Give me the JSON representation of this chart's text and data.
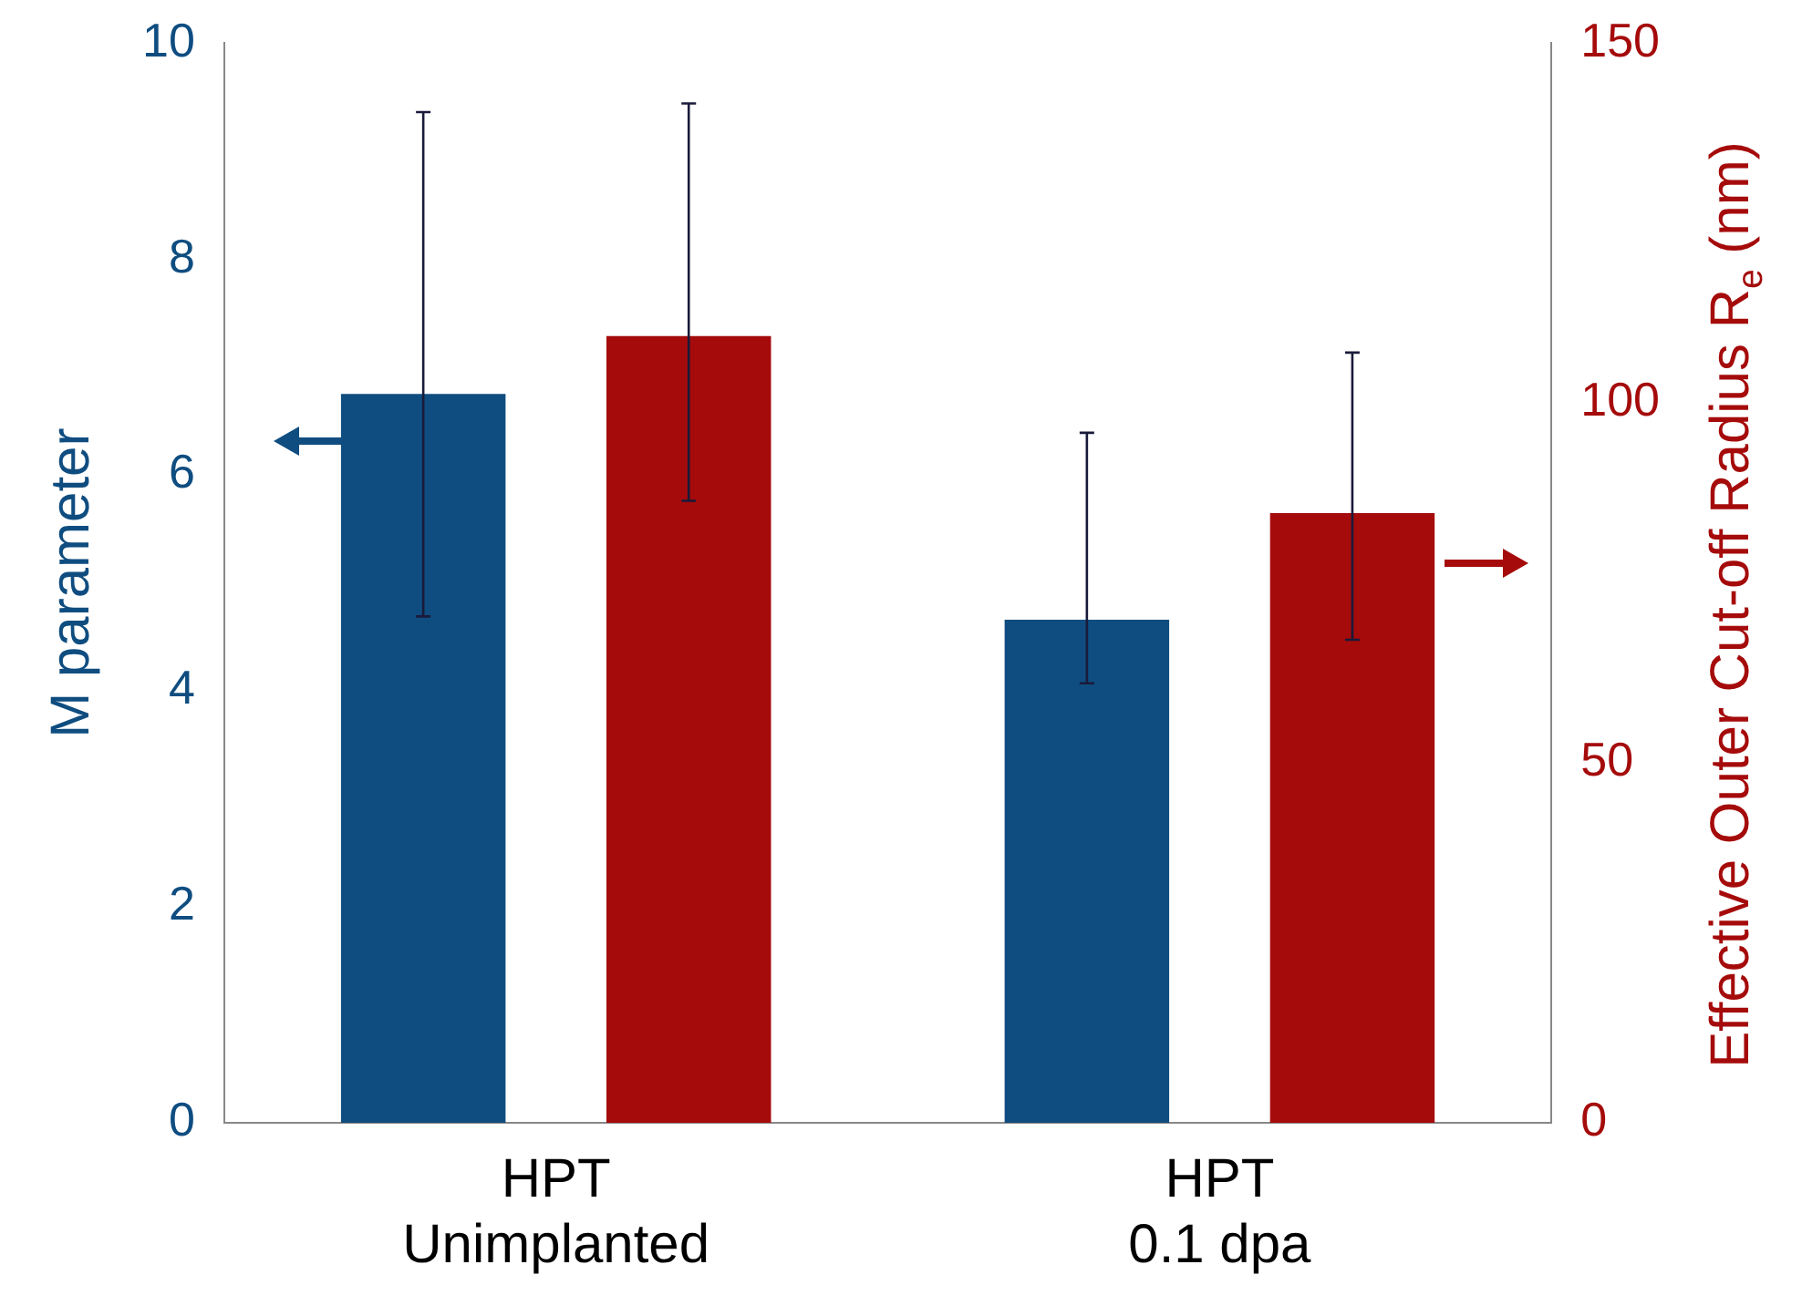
{
  "chart_data": {
    "type": "bar",
    "categories": [
      "HPT\nUnimplanted",
      "HPT\n0.1 dpa"
    ],
    "ylabel": "M parameter",
    "y2label": "Effective Outer Cut-off Radius R$_{e}$ (nm)",
    "series": [
      {
        "color": "#0f4d80",
        "values": [
          6.75,
          4.66
        ],
        "errors": [
          [
            4.69,
            9.36
          ],
          [
            4.07,
            6.39
          ]
        ]
      },
      {
        "color": "#a50b0b",
        "axis": "y2",
        "values": [
          109.3,
          84.7
        ],
        "errors": [
          [
            86.4,
            141.6
          ],
          [
            67.1,
            107
          ]
        ]
      }
    ],
    "ylim": [
      0,
      10
    ],
    "yticks": [
      0,
      2,
      4,
      6,
      8,
      10
    ],
    "y2lim": [
      0,
      150
    ],
    "y2ticks": [
      0,
      50,
      100,
      150
    ],
    "grid": false,
    "legend": false
  }
}
